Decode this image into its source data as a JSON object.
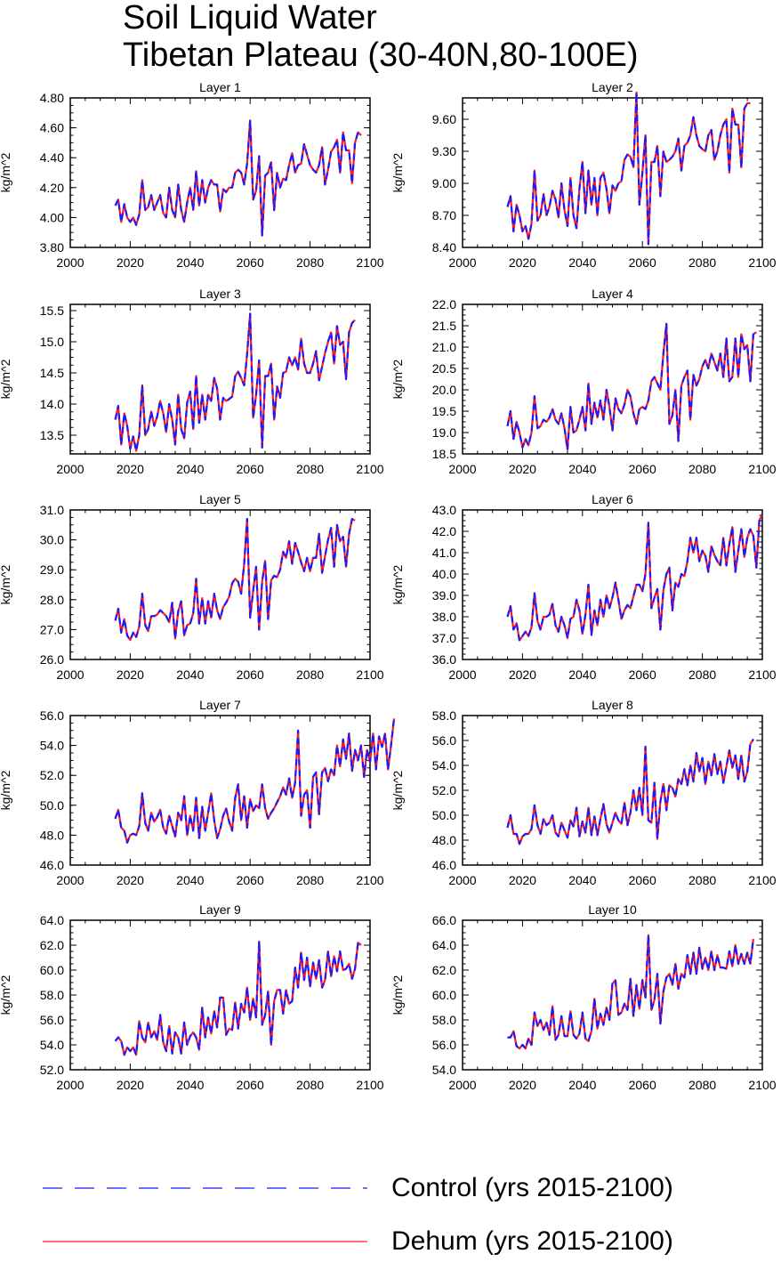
{
  "title": [
    "Soil Liquid Water",
    "Tibetan Plateau (30-40N,80-100E)"
  ],
  "colors": {
    "control": "#1a1aff",
    "dehum": "#ff1a1a"
  },
  "legend": [
    {
      "name": "Control (yrs 2015-2100)",
      "style": "dashed",
      "color": "#1a1aff"
    },
    {
      "name": "Dehum (yrs 2015-2100)",
      "style": "solid",
      "color": "#ff1a1a"
    }
  ],
  "chart_data": [
    {
      "type": "line",
      "title": "Layer 1",
      "ylabel": "kg/m^2",
      "xlim": [
        2000,
        2100
      ],
      "ylim": [
        3.8,
        4.8
      ],
      "yticks": [
        3.8,
        4.0,
        4.2,
        4.4,
        4.6,
        4.8
      ],
      "ydecimals": 2,
      "xticks": [
        2000,
        2020,
        2040,
        2060,
        2080,
        2100
      ],
      "x_start": 2015,
      "values": [
        4.08,
        4.12,
        3.97,
        4.09,
        4.0,
        3.97,
        4.0,
        3.95,
        4.02,
        4.25,
        4.05,
        4.07,
        4.15,
        4.05,
        4.1,
        4.15,
        4.03,
        4.0,
        4.2,
        4.05,
        4.0,
        4.22,
        4.05,
        3.97,
        4.1,
        4.2,
        4.05,
        4.31,
        4.08,
        4.25,
        4.1,
        4.2,
        4.25,
        4.22,
        4.22,
        4.04,
        4.19,
        4.17,
        4.2,
        4.2,
        4.3,
        4.32,
        4.3,
        4.22,
        4.36,
        4.65,
        4.12,
        4.18,
        4.41,
        3.88,
        4.28,
        4.3,
        4.37,
        4.05,
        4.3,
        4.2,
        4.26,
        4.25,
        4.35,
        4.43,
        4.3,
        4.35,
        4.36,
        4.49,
        4.42,
        4.35,
        4.32,
        4.3,
        4.35,
        4.47,
        4.22,
        4.32,
        4.44,
        4.47,
        4.52,
        4.3,
        4.57,
        4.45,
        4.45,
        4.23,
        4.5,
        4.57,
        4.55
      ]
    },
    {
      "type": "line",
      "title": "Layer 2",
      "ylabel": "kg/m^2",
      "xlim": [
        2000,
        2100
      ],
      "ylim": [
        8.4,
        9.8
      ],
      "yticks": [
        8.4,
        8.7,
        9.0,
        9.3,
        9.6
      ],
      "ydecimals": 2,
      "xticks": [
        2000,
        2020,
        2040,
        2060,
        2080,
        2100
      ],
      "x_start": 2015,
      "values": [
        8.78,
        8.88,
        8.55,
        8.8,
        8.7,
        8.55,
        8.6,
        8.48,
        8.62,
        9.12,
        8.65,
        8.7,
        8.9,
        8.7,
        8.78,
        8.93,
        8.85,
        8.68,
        9.0,
        8.75,
        8.6,
        9.05,
        8.7,
        8.58,
        8.95,
        9.2,
        8.72,
        9.12,
        8.8,
        9.05,
        8.7,
        9.05,
        9.1,
        8.95,
        8.72,
        8.98,
        8.93,
        9.0,
        9.02,
        9.22,
        9.27,
        9.25,
        9.15,
        9.85,
        8.8,
        9.1,
        9.45,
        8.43,
        9.2,
        9.2,
        9.35,
        8.88,
        9.3,
        9.2,
        9.22,
        9.25,
        9.3,
        9.42,
        9.12,
        9.35,
        9.38,
        9.45,
        9.62,
        9.45,
        9.35,
        9.32,
        9.3,
        9.45,
        9.5,
        9.22,
        9.3,
        9.45,
        9.55,
        9.6,
        9.1,
        9.7,
        9.55,
        9.55,
        9.15,
        9.7,
        9.75,
        9.75
      ]
    },
    {
      "type": "line",
      "title": "Layer 3",
      "ylabel": "kg/m^2",
      "xlim": [
        2000,
        2100
      ],
      "ylim": [
        13.2,
        15.6
      ],
      "yticks": [
        13.5,
        14.0,
        14.5,
        15.0,
        15.5
      ],
      "ydecimals": 1,
      "xticks": [
        2000,
        2020,
        2040,
        2060,
        2080,
        2100
      ],
      "x_start": 2015,
      "values": [
        13.75,
        13.97,
        13.35,
        13.85,
        13.65,
        13.28,
        13.48,
        13.25,
        13.5,
        14.3,
        13.5,
        13.6,
        13.88,
        13.65,
        13.8,
        14.05,
        13.85,
        13.55,
        14.0,
        13.75,
        13.35,
        14.15,
        13.6,
        13.45,
        14.02,
        14.2,
        13.6,
        14.45,
        13.7,
        14.15,
        13.75,
        14.15,
        14.05,
        14.42,
        14.25,
        13.75,
        14.1,
        14.05,
        14.08,
        14.12,
        14.45,
        14.52,
        14.42,
        14.3,
        14.8,
        15.45,
        13.78,
        14.15,
        14.7,
        13.3,
        14.45,
        14.45,
        14.65,
        13.75,
        14.28,
        14.1,
        14.5,
        14.52,
        14.75,
        14.62,
        14.75,
        14.55,
        15.05,
        14.65,
        14.5,
        14.5,
        14.65,
        14.85,
        14.38,
        14.6,
        14.82,
        15.0,
        15.15,
        14.65,
        15.25,
        14.95,
        15.0,
        14.4,
        15.15,
        15.3,
        15.35
      ]
    },
    {
      "type": "line",
      "title": "Layer 4",
      "ylabel": "kg/m^2",
      "xlim": [
        2000,
        2100
      ],
      "ylim": [
        18.5,
        22.0
      ],
      "yticks": [
        18.5,
        19.0,
        19.5,
        20.0,
        20.5,
        21.0,
        21.5,
        22.0
      ],
      "ydecimals": 1,
      "xticks": [
        2000,
        2020,
        2040,
        2060,
        2080,
        2100
      ],
      "x_start": 2015,
      "values": [
        19.15,
        19.5,
        18.85,
        19.25,
        19.0,
        18.65,
        18.85,
        18.7,
        19.0,
        19.85,
        19.1,
        19.15,
        19.3,
        19.25,
        19.35,
        19.55,
        19.3,
        19.2,
        19.45,
        19.1,
        18.6,
        19.6,
        19.0,
        19.05,
        19.3,
        19.6,
        19.05,
        20.15,
        19.2,
        19.7,
        19.35,
        19.75,
        19.3,
        20.0,
        19.6,
        19.05,
        19.8,
        19.55,
        19.45,
        19.65,
        20.0,
        19.85,
        19.45,
        19.2,
        19.55,
        19.6,
        19.55,
        19.75,
        20.2,
        20.3,
        20.15,
        20.0,
        20.85,
        21.55,
        19.2,
        19.4,
        20.0,
        18.8,
        20.1,
        20.3,
        20.45,
        19.3,
        20.35,
        20.1,
        20.25,
        20.55,
        20.7,
        20.5,
        20.85,
        20.65,
        20.45,
        20.85,
        20.3,
        21.2,
        20.2,
        20.3,
        21.2,
        20.3,
        21.3,
        20.95,
        21.05,
        20.2,
        21.3,
        21.35
      ]
    },
    {
      "type": "line",
      "title": "Layer 5",
      "ylabel": "kg/m^2",
      "xlim": [
        2000,
        2100
      ],
      "ylim": [
        26.0,
        31.0
      ],
      "yticks": [
        26.0,
        27.0,
        28.0,
        29.0,
        30.0,
        31.0
      ],
      "ydecimals": 1,
      "xticks": [
        2000,
        2020,
        2040,
        2060,
        2080,
        2100
      ],
      "x_start": 2015,
      "values": [
        27.3,
        27.7,
        26.9,
        27.35,
        26.8,
        26.65,
        26.9,
        26.75,
        27.1,
        28.2,
        27.15,
        26.95,
        27.45,
        27.45,
        27.5,
        27.65,
        27.55,
        27.45,
        27.25,
        27.9,
        26.7,
        27.6,
        27.95,
        26.8,
        27.15,
        27.2,
        27.55,
        28.7,
        27.2,
        28.05,
        27.2,
        27.95,
        27.4,
        28.2,
        27.65,
        27.35,
        27.75,
        27.9,
        28.1,
        28.55,
        28.7,
        28.6,
        28.2,
        29.2,
        30.7,
        27.4,
        28.3,
        29.1,
        27.0,
        28.6,
        29.3,
        27.35,
        28.65,
        28.8,
        28.75,
        29.0,
        29.6,
        29.4,
        29.95,
        29.2,
        29.9,
        29.6,
        29.25,
        28.95,
        29.4,
        28.95,
        29.4,
        29.4,
        30.2,
        28.9,
        29.45,
        30.0,
        30.4,
        29.1,
        30.5,
        29.95,
        30.1,
        29.1,
        30.2,
        30.7,
        30.65
      ]
    },
    {
      "type": "line",
      "title": "Layer 6",
      "ylabel": "kg/m^2",
      "xlim": [
        2000,
        2100
      ],
      "ylim": [
        36.0,
        43.0
      ],
      "yticks": [
        36.0,
        37.0,
        38.0,
        39.0,
        40.0,
        41.0,
        42.0,
        43.0
      ],
      "ydecimals": 1,
      "xticks": [
        2000,
        2020,
        2040,
        2060,
        2080,
        2100
      ],
      "x_start": 2015,
      "values": [
        38.0,
        38.5,
        37.4,
        37.7,
        36.9,
        37.1,
        37.3,
        37.1,
        37.5,
        39.1,
        37.8,
        37.4,
        38.0,
        38.0,
        38.1,
        38.6,
        37.6,
        37.3,
        38.0,
        37.6,
        37.0,
        37.9,
        38.0,
        38.8,
        38.3,
        37.2,
        38.1,
        39.5,
        37.15,
        38.3,
        37.6,
        38.8,
        38.0,
        39.0,
        38.4,
        38.9,
        39.6,
        38.8,
        37.9,
        38.3,
        38.55,
        38.4,
        38.95,
        39.5,
        39.5,
        39.2,
        40.0,
        42.4,
        38.4,
        38.9,
        39.3,
        37.4,
        39.25,
        40.0,
        40.3,
        38.3,
        39.6,
        39.4,
        40.0,
        39.9,
        40.6,
        41.7,
        41.0,
        41.7,
        40.6,
        41.1,
        40.85,
        40.1,
        41.3,
        40.9,
        40.6,
        40.4,
        41.7,
        40.4,
        41.4,
        42.2,
        40.1,
        41.1,
        42.1,
        40.8,
        41.7,
        42.1,
        41.8,
        40.3,
        42.5,
        42.8
      ]
    },
    {
      "type": "line",
      "title": "Layer 7",
      "ylabel": "kg/m^2",
      "xlim": [
        2000,
        2100
      ],
      "ylim": [
        46.0,
        56.0
      ],
      "yticks": [
        46.0,
        48.0,
        50.0,
        52.0,
        54.0,
        56.0
      ],
      "ydecimals": 1,
      "xticks": [
        2000,
        2020,
        2040,
        2060,
        2080,
        2100
      ],
      "x_start": 2015,
      "values": [
        49.1,
        49.7,
        48.5,
        48.3,
        47.5,
        48.0,
        48.1,
        48.0,
        48.6,
        50.8,
        48.8,
        48.3,
        49.5,
        48.9,
        49.2,
        49.7,
        48.5,
        48.1,
        49.3,
        48.6,
        47.9,
        49.5,
        49.0,
        50.6,
        48.0,
        49.3,
        48.3,
        50.5,
        47.8,
        49.9,
        48.3,
        49.5,
        50.8,
        49.0,
        47.8,
        48.4,
        49.3,
        49.8,
        48.9,
        48.3,
        50.5,
        51.4,
        49.0,
        50.6,
        48.5,
        50.4,
        49.6,
        50.0,
        49.8,
        51.4,
        49.8,
        49.1,
        49.5,
        49.8,
        50.2,
        50.6,
        51.2,
        50.7,
        51.8,
        50.5,
        51.5,
        55.0,
        49.3,
        50.7,
        51.0,
        48.5,
        51.9,
        52.2,
        49.4,
        52.2,
        52.5,
        51.6,
        52.4,
        52.0,
        54.0,
        52.6,
        54.4,
        53.1,
        54.8,
        52.3,
        53.7,
        53.0,
        54.0,
        51.9,
        53.7,
        52.9,
        54.8,
        52.4,
        54.6,
        53.9,
        54.8,
        52.4,
        54.0,
        55.8
      ]
    },
    {
      "type": "line",
      "title": "Layer 8",
      "ylabel": "kg/m^2",
      "xlim": [
        2000,
        2100
      ],
      "ylim": [
        46.0,
        58.0
      ],
      "yticks": [
        46.0,
        48.0,
        50.0,
        52.0,
        54.0,
        56.0,
        58.0
      ],
      "ydecimals": 1,
      "xticks": [
        2000,
        2020,
        2040,
        2060,
        2080,
        2100
      ],
      "x_start": 2015,
      "values": [
        49.0,
        50.0,
        48.5,
        48.5,
        47.7,
        48.3,
        48.5,
        48.5,
        48.9,
        50.8,
        49.2,
        48.5,
        49.7,
        49.2,
        49.4,
        50.0,
        48.6,
        48.3,
        49.4,
        48.8,
        48.2,
        49.6,
        49.1,
        50.6,
        48.3,
        49.5,
        48.6,
        50.6,
        48.4,
        49.9,
        48.4,
        49.7,
        50.9,
        49.3,
        48.6,
        49.4,
        50.2,
        49.6,
        49.3,
        51.0,
        49.2,
        50.2,
        52.0,
        50.4,
        52.2,
        50.0,
        55.5,
        49.6,
        49.4,
        52.6,
        48.1,
        51.1,
        52.5,
        50.4,
        52.4,
        52.2,
        51.5,
        52.9,
        52.5,
        53.7,
        52.4,
        54.0,
        52.7,
        55.0,
        53.5,
        54.6,
        52.5,
        54.3,
        53.2,
        54.9,
        53.3,
        54.3,
        52.6,
        53.9,
        55.2,
        53.8,
        54.8,
        52.9,
        54.8,
        52.7,
        53.5,
        55.7,
        56.1
      ]
    },
    {
      "type": "line",
      "title": "Layer 9",
      "ylabel": "kg/m^2",
      "xlim": [
        2000,
        2100
      ],
      "ylim": [
        52.0,
        64.0
      ],
      "yticks": [
        52.0,
        54.0,
        56.0,
        58.0,
        60.0,
        62.0,
        64.0
      ],
      "ydecimals": 1,
      "xticks": [
        2000,
        2020,
        2040,
        2060,
        2080,
        2100
      ],
      "x_start": 2015,
      "values": [
        54.3,
        54.6,
        54.3,
        53.2,
        53.8,
        53.5,
        53.8,
        53.2,
        55.9,
        54.6,
        54.2,
        55.8,
        54.6,
        55.1,
        54.4,
        56.4,
        54.2,
        53.5,
        55.5,
        53.3,
        55.0,
        54.6,
        53.3,
        55.8,
        54.0,
        54.7,
        55.0,
        54.6,
        53.6,
        57.0,
        54.6,
        56.2,
        54.9,
        56.7,
        55.4,
        57.8,
        57.8,
        54.8,
        55.3,
        55.2,
        57.4,
        55.3,
        57.3,
        56.6,
        58.6,
        56.0,
        57.7,
        56.2,
        62.3,
        55.6,
        56.4,
        58.3,
        54.0,
        57.5,
        58.4,
        58.4,
        56.5,
        58.4,
        57.3,
        57.5,
        60.2,
        58.6,
        61.4,
        59.2,
        61.0,
        58.7,
        60.6,
        59.3,
        60.8,
        58.6,
        59.2,
        61.5,
        59.5,
        61.1,
        59.9,
        61.5,
        60.0,
        60.1,
        60.5,
        59.3,
        60.1,
        62.2,
        62.0
      ]
    },
    {
      "type": "line",
      "title": "Layer 10",
      "ylabel": "kg/m^2",
      "xlim": [
        2000,
        2100
      ],
      "ylim": [
        54.0,
        66.0
      ],
      "yticks": [
        54.0,
        56.0,
        58.0,
        60.0,
        62.0,
        64.0,
        66.0
      ],
      "ydecimals": 1,
      "xticks": [
        2000,
        2020,
        2040,
        2060,
        2080,
        2100
      ],
      "x_start": 2015,
      "values": [
        56.6,
        56.6,
        57.1,
        55.9,
        55.7,
        56.0,
        55.7,
        56.5,
        56.0,
        58.6,
        57.5,
        58.0,
        57.2,
        57.8,
        56.8,
        59.1,
        56.4,
        56.8,
        58.3,
        56.7,
        56.7,
        58.7,
        56.8,
        56.5,
        56.9,
        58.6,
        56.5,
        56.3,
        57.1,
        59.7,
        57.3,
        58.5,
        57.6,
        59.0,
        58.0,
        60.9,
        61.2,
        58.4,
        58.6,
        59.3,
        58.8,
        61.3,
        58.3,
        60.8,
        58.9,
        61.2,
        59.8,
        64.8,
        58.8,
        59.6,
        61.7,
        57.7,
        60.3,
        61.4,
        61.7,
        60.8,
        62.5,
        60.5,
        61.7,
        61.4,
        63.2,
        61.7,
        63.4,
        61.7,
        63.8,
        62.1,
        63.0,
        62.0,
        63.5,
        62.0,
        63.2,
        62.2,
        62.2,
        62.1,
        63.5,
        62.3,
        64.0,
        62.5,
        63.3,
        62.5,
        63.4,
        62.5,
        64.5
      ]
    }
  ]
}
